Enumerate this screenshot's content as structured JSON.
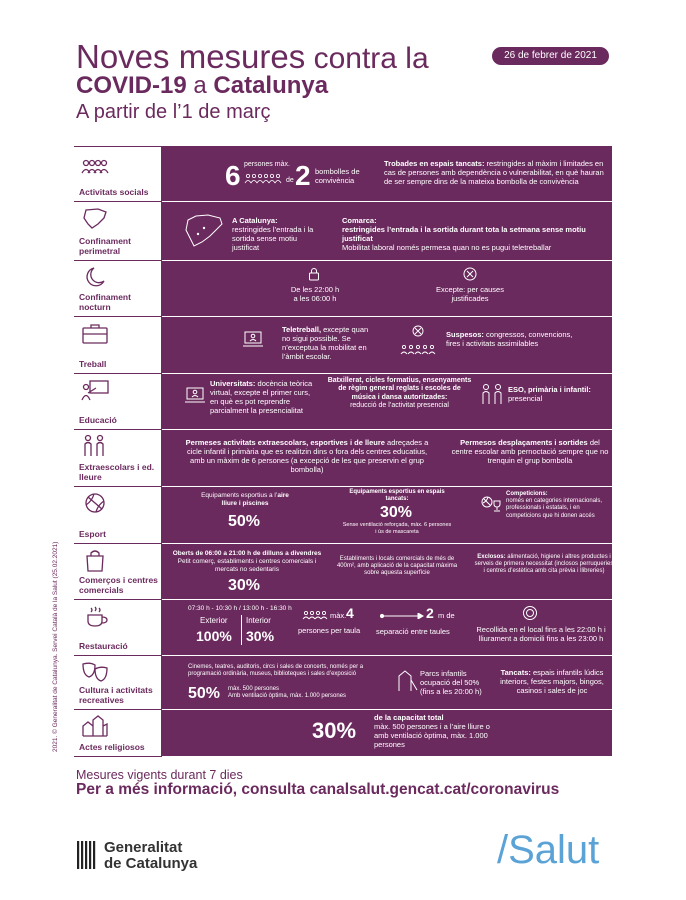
{
  "header": {
    "date": "26 de febrer de 2021",
    "title_line1_big": "Noves mesures",
    "title_line1_rest": " contra la",
    "title_line2_a": "COVID-19",
    "title_line2_b": " a ",
    "title_line2_c": "Catalunya",
    "subtitle": "A partir de l’1 de març"
  },
  "colors": {
    "primary": "#6b2a5e",
    "salut_blue": "#5ba3d6"
  },
  "rows": {
    "social": {
      "label": "Activitats socials",
      "icon": "group-icon",
      "big6": "6",
      "persons": "persones màx.",
      "de": "de",
      "big2": "2",
      "bombolles": "bombolles de convivència",
      "indoor_bold": "Trobades en espais tancats:",
      "indoor_text": " restringides al màxim i limitades en cas de persones amb dependència o vulnerabilitat, en què hauran de ser sempre dins de la mateixa bombolla de convivència"
    },
    "perimetral": {
      "label": "Confinament perimetral",
      "icon": "catalonia-map-icon",
      "cat_bold": "A Catalunya:",
      "cat_text": "restringides l’entrada i la sortida sense motiu justificat",
      "comarca_bold": "Comarca:",
      "comarca_bold2": "restringides l’entrada i la sortida durant tota la setmana sense motiu justificat",
      "comarca_text": "Mobilitat laboral només permesa quan no es pugui teletreballar"
    },
    "nocturn": {
      "label": "Confinament nocturn",
      "icon": "moon-icon",
      "hours": "De les 22:00 h a les 06:00 h",
      "except": "Excepte: per causes justificades"
    },
    "treball": {
      "label": "Treball",
      "icon": "briefcase-icon",
      "tele_bold": "Teletreball,",
      "tele_text": " excepte quan no sigui possible. Se n’exceptua la mobilitat en l’àmbit escolar.",
      "susp_bold": "Suspesos:",
      "susp_text": " congressos, convencions, fires i activitats assimilables"
    },
    "educacio": {
      "label": "Educació",
      "icon": "teacher-icon",
      "uni_bold": "Universitats:",
      "uni_text": " docència teòrica virtual, excepte el primer curs, en què es pot reprendre parcialment la presencialitat",
      "bat_bold": "Batxillerat, cicles formatius, ensenyaments de règim general reglats i escoles de música i dansa autoritzades:",
      "bat_text": "reducció de l’activitat presencial",
      "eso_bold": "ESO, primària i infantil:",
      "eso_text": "presencial"
    },
    "extra": {
      "label": "Extraescolars i ed. lleure",
      "icon": "children-icon",
      "left_bold": "Permeses activitats extraescolars, esportives i de lleure",
      "left_text": " adreçades a cicle infantil i primària que es realitzin dins o fora dels centres educatius, amb un màxim de 6 persones (a excepció de les que preservin el grup bombolla)",
      "right_bold": "Permesos desplaçaments i sortides",
      "right_text": " del centre escolar amb pernoctació sempre que no trenquin el grup bombolla"
    },
    "esport": {
      "label": "Esport",
      "icon": "ball-icon",
      "out_text": "Equipaments esportius a l’",
      "out_bold": "aire lliure i piscines",
      "out_pct": "50%",
      "in_bold": "Equipaments esportius en espais tancats:",
      "in_pct": "30%",
      "in_text": "Sense ventilació reforçada, màx. 6 persones i ús de mascareta",
      "comp_bold": "Competicions:",
      "comp_text": "només en categories internacionals, professionals i estatals, i en competicions que hi donen accés"
    },
    "comerc": {
      "label": "Comerços i centres comercials",
      "icon": "shopping-bag-icon",
      "hours_bold": "Oberts de 06:00 a 21:00 h de dilluns a divendres",
      "hours_text": "Petit comerç, establiments i centres comercials i mercats no sedentaris",
      "pct": "30%",
      "big_text": "Establiments i locals comercials de més de 400m², amb aplicació de la capacitat màxima sobre aquesta superfície",
      "excl_bold": "Exclosos:",
      "excl_text": " alimentació, higiene i altres productes i serveis de primera necessitat (inclosos perruqueries i centres d’estètica amb cita prèvia i llibreries)"
    },
    "restauracio": {
      "label": "Restauració",
      "icon": "cup-icon",
      "hours": "07:30 h - 10:30 h / 13:00 h - 16:30 h",
      "ext": "Exterior",
      "int": "Interior",
      "ext_pct": "100%",
      "int_pct": "30%",
      "max": "màx.",
      "four": "4",
      "per_taula": "persones per taula",
      "two": "2",
      "m_de": "m de",
      "separacio": "separació entre taules",
      "recollida": "Recollida en el local fins a les 22:00 h i lliurament a domicili fins a les 23:00 h"
    },
    "cultura": {
      "label": "Cultura i activitats recreatives",
      "icon": "masks-icon",
      "venues": "Cinemes, teatres, auditoris, circs i sales de concerts, només per a programació ordinària, museus, biblioteques i sales d’exposició",
      "pct": "50%",
      "pct_text1": "màx. 500 persones",
      "pct_text2": "Amb ventilació òptima, màx. 1.000 persones",
      "parcs": "Parcs infantils ocupació del 50% (fins a les 20:00 h)",
      "tancats_bold": "Tancats:",
      "tancats_text": " espais infantils lúdics interiors, festes majors, bingos, casinos i sales de joc"
    },
    "religios": {
      "label": "Actes religiosos",
      "icon": "church-icon",
      "pct": "30%",
      "cap_bold": "de la capacitat total",
      "cap_text": "màx. 500 persones i a l’aire lliure o amb ventilació òptima, màx. 1.000 persones"
    }
  },
  "footer": {
    "vigents": "Mesures vigents durant 7 dies",
    "more_info": "Per a més informació, consulta canalsalut.gencat.cat/coronavirus",
    "credit": "2021. © Generalitat de Catalunya. Servei Català de la Salut (25.02.2021)",
    "gen_line1": "Generalitat",
    "gen_line2": "de Catalunya",
    "salut": "/Salut"
  }
}
